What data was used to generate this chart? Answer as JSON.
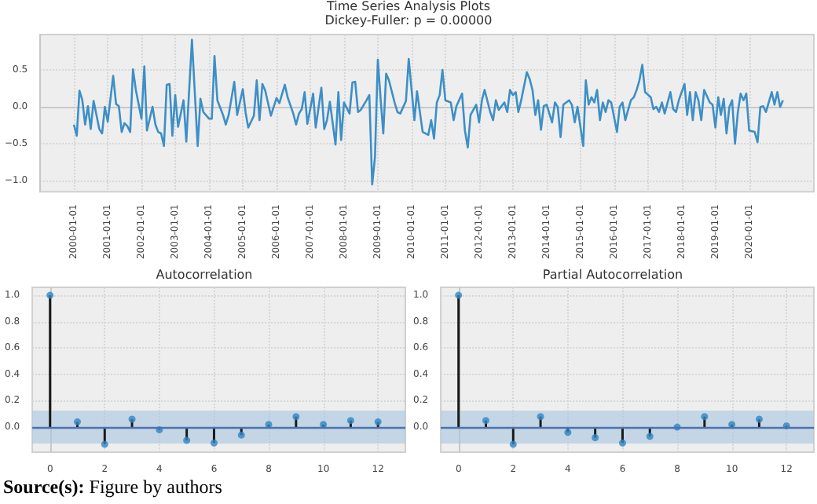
{
  "chart_data": [
    {
      "type": "line",
      "title": "Time Series Analysis Plots",
      "subtitle": "Dickey-Fuller: p = 0.00000",
      "annotations": [
        "Source(s): Figure by authors"
      ],
      "xlim": [
        "1999-01-01",
        "2021-12-01"
      ],
      "xticks": [
        "2000-01-01",
        "2001-01-01",
        "2002-01-01",
        "2003-01-01",
        "2004-01-01",
        "2005-01-01",
        "2006-01-01",
        "2007-01-01",
        "2008-01-01",
        "2009-01-01",
        "2010-01-01",
        "2011-01-01",
        "2012-01-01",
        "2013-01-01",
        "2014-01-01",
        "2015-01-01",
        "2016-01-01",
        "2017-01-01",
        "2018-01-01",
        "2019-01-01",
        "2020-01-01"
      ],
      "ylim": [
        -1.15,
        0.98
      ],
      "yticks": [
        {
          "value": -1,
          "label": "−1.0"
        },
        {
          "value": -0.5,
          "label": "−0.5"
        },
        {
          "value": 0,
          "label": "0.0"
        },
        0.5
      ],
      "grid": true,
      "marker": "none",
      "line_style": "solid",
      "series": [
        {
          "color": "#3d8fc6",
          "x": [
            "2000-01",
            "2000-02",
            "2000-03",
            "2000-04",
            "2000-05",
            "2000-06",
            "2000-07",
            "2000-08",
            "2000-09",
            "2000-10",
            "2000-11",
            "2000-12",
            "2001-01",
            "2001-03",
            "2001-04",
            "2001-05",
            "2001-06",
            "2001-07",
            "2001-08",
            "2001-09",
            "2001-10",
            "2001-11",
            "2002-01",
            "2002-02",
            "2002-03",
            "2002-05",
            "2002-06",
            "2002-07",
            "2002-08",
            "2002-09",
            "2002-10",
            "2002-11",
            "2002-12",
            "2003-01",
            "2003-02",
            "2003-04",
            "2003-05",
            "2003-07",
            "2003-09",
            "2003-10",
            "2003-11",
            "2004-01",
            "2004-02",
            "2004-03",
            "2004-04",
            "2004-06",
            "2004-07",
            "2004-08",
            "2004-10",
            "2004-11",
            "2005-01",
            "2005-02",
            "2005-03",
            "2005-05",
            "2005-06",
            "2005-07",
            "2005-08",
            "2005-09",
            "2005-11",
            "2006-01",
            "2006-02",
            "2006-04",
            "2006-05",
            "2006-07",
            "2006-08",
            "2006-09",
            "2006-10",
            "2006-11",
            "2006-12",
            "2007-02",
            "2007-03",
            "2007-05",
            "2007-06",
            "2007-07",
            "2007-08",
            "2007-10",
            "2007-11",
            "2007-12",
            "2008-01",
            "2008-03",
            "2008-04",
            "2008-05",
            "2008-06",
            "2008-07",
            "2008-09",
            "2008-10",
            "2008-11",
            "2008-12",
            "2009-01",
            "2009-02",
            "2009-03",
            "2009-04",
            "2009-05",
            "2009-07",
            "2009-08",
            "2009-09",
            "2009-11",
            "2009-12",
            "2010-02",
            "2010-03",
            "2010-05",
            "2010-07",
            "2010-08",
            "2010-09",
            "2010-10",
            "2010-11",
            "2010-12",
            "2011-01",
            "2011-03",
            "2011-04",
            "2011-05",
            "2011-07",
            "2011-08",
            "2011-09",
            "2011-10",
            "2011-12",
            "2012-01",
            "2012-02",
            "2012-03",
            "2012-05",
            "2012-06",
            "2012-07",
            "2012-08",
            "2012-10",
            "2012-11",
            "2012-12",
            "2013-01",
            "2013-02",
            "2013-03",
            "2013-04",
            "2013-06",
            "2013-07",
            "2013-08",
            "2013-09",
            "2013-10",
            "2013-11",
            "2013-12",
            "2014-01",
            "2014-03",
            "2014-04",
            "2014-05",
            "2014-06",
            "2014-07",
            "2014-09",
            "2014-10",
            "2014-11",
            "2014-12",
            "2015-02",
            "2015-03",
            "2015-04",
            "2015-05",
            "2015-06",
            "2015-07",
            "2015-08",
            "2015-09",
            "2015-10",
            "2015-11",
            "2015-12",
            "2016-02",
            "2016-03",
            "2016-04",
            "2016-05",
            "2016-06",
            "2016-07",
            "2016-08",
            "2016-09",
            "2016-10",
            "2016-11",
            "2016-12",
            "2017-02",
            "2017-03",
            "2017-04",
            "2017-05",
            "2017-06",
            "2017-07",
            "2017-09",
            "2017-10",
            "2017-11",
            "2017-12",
            "2018-02",
            "2018-03",
            "2018-04",
            "2018-05",
            "2018-06",
            "2018-07",
            "2018-08",
            "2018-09",
            "2018-11",
            "2018-12",
            "2019-01",
            "2019-02",
            "2019-03",
            "2019-04",
            "2019-05",
            "2019-06",
            "2019-07",
            "2019-08",
            "2019-09",
            "2019-10",
            "2019-11",
            "2019-12",
            "2020-01",
            "2020-03",
            "2020-04",
            "2020-05",
            "2020-06",
            "2020-07",
            "2020-09",
            "2020-10",
            "2020-11",
            "2020-12",
            "2021-01"
          ],
          "values": [
            -0.24,
            -0.39,
            0.22,
            0.09,
            -0.24,
            0.01,
            -0.3,
            0.08,
            -0.11,
            -0.3,
            -0.36,
            0,
            -0.2,
            0.42,
            0.04,
            0.01,
            -0.34,
            -0.22,
            -0.26,
            -0.34,
            0.51,
            0.23,
            -0.16,
            0.55,
            -0.32,
            0,
            -0.24,
            -0.34,
            -0.36,
            -0.53,
            0.3,
            0.31,
            -0.39,
            0.16,
            -0.27,
            0.09,
            -0.47,
            0.91,
            -0.53,
            0.11,
            -0.07,
            -0.16,
            -0.16,
            0.69,
            0.09,
            -0.11,
            -0.24,
            -0.11,
            0.34,
            -0.11,
            0.24,
            -0.08,
            -0.28,
            -0.12,
            0.36,
            -0.18,
            0.31,
            0.22,
            -0.12,
            0.12,
            0.05,
            0.3,
            0.13,
            -0.09,
            -0.24,
            -0.09,
            -0.03,
            0.2,
            -0.23,
            0.18,
            -0.28,
            0.26,
            -0.3,
            -0.18,
            0.07,
            -0.51,
            0.2,
            -0.45,
            0.06,
            -0.09,
            0.33,
            0.34,
            -0.07,
            -0.04,
            0.09,
            0.16,
            -1.05,
            -0.68,
            0.64,
            0.09,
            -0.36,
            0.45,
            0.36,
            0.06,
            -0.07,
            -0.09,
            0.08,
            0.65,
            -0.18,
            0.21,
            -0.34,
            -0.38,
            -0.18,
            -0.43,
            0.06,
            0.16,
            0.5,
            0.09,
            0.06,
            -0.18,
            0.01,
            0.18,
            -0.32,
            -0.55,
            -0.11,
            0.03,
            -0.21,
            0.09,
            0.23,
            -0.07,
            -0.18,
            0.09,
            -0.04,
            0.06,
            -0.07,
            0.23,
            0.16,
            0.2,
            -0.07,
            0.09,
            0.47,
            0.38,
            0.23,
            -0.11,
            0.09,
            -0.31,
            0.01,
            0.03,
            -0.21,
            0.06,
            0,
            -0.41,
            0.03,
            0.09,
            0.03,
            -0.21,
            0,
            -0.53,
            0.36,
            0.03,
            0.13,
            0.06,
            0.23,
            -0.18,
            0.06,
            -0.07,
            0.09,
            0.06,
            -0.34,
            0,
            0.06,
            -0.18,
            -0.04,
            0.09,
            0.13,
            0.23,
            0.36,
            0.57,
            0.2,
            0.13,
            -0.03,
            0,
            -0.07,
            0.06,
            -0.09,
            0.2,
            -0.03,
            -0.07,
            0.09,
            0.31,
            -0.11,
            0.2,
            -0.18,
            0.2,
            0.09,
            -0.18,
            0.23,
            0.06,
            0.03,
            -0.28,
            0.13,
            -0.11,
            0.11,
            -0.36,
            0,
            0.09,
            -0.5,
            -0.07,
            0.18,
            0.09,
            0.18,
            -0.32,
            -0.34,
            -0.48,
            0,
            0.01,
            -0.07,
            0.2,
            0.03,
            0.2,
            0,
            0.09
          ]
        }
      ]
    },
    {
      "type": "lollipop",
      "title": "Autocorrelation",
      "x": [
        0,
        1,
        2,
        3,
        4,
        5,
        6,
        7,
        8,
        9,
        10,
        11,
        12
      ],
      "xlim": [
        -0.65,
        13
      ],
      "xticks": [
        0,
        2,
        4,
        6,
        8,
        10,
        12
      ],
      "ylim": [
        -0.19,
        1.06
      ],
      "yticks": [
        {
          "value": 0,
          "label": "0.0"
        },
        0.2,
        0.4,
        0.6,
        0.8,
        {
          "value": 1,
          "label": "1.0"
        }
      ],
      "grid": true,
      "marker": "circle",
      "ref_lines": [
        {
          "axis": "y",
          "value": 0,
          "color": "#4c72b0"
        }
      ],
      "bands": [
        {
          "axis": "y",
          "from": -0.125,
          "to": 0.125,
          "color": "#a9c7df"
        }
      ],
      "series": [
        {
          "color": "#2f86c4",
          "values": [
            1,
            0.04,
            -0.13,
            0.06,
            -0.02,
            -0.1,
            -0.12,
            -0.06,
            0.02,
            0.08,
            0.02,
            0.05,
            0.04
          ]
        }
      ]
    },
    {
      "type": "lollipop",
      "title": "Partial Autocorrelation",
      "x": [
        0,
        1,
        2,
        3,
        4,
        5,
        6,
        7,
        8,
        9,
        10,
        11,
        12
      ],
      "xlim": [
        -0.65,
        13
      ],
      "xticks": [
        0,
        2,
        4,
        6,
        8,
        10,
        12
      ],
      "ylim": [
        -0.19,
        1.06
      ],
      "yticks": [
        {
          "value": 0,
          "label": "0.0"
        },
        0.2,
        0.4,
        0.6,
        0.8,
        {
          "value": 1,
          "label": "1.0"
        }
      ],
      "grid": true,
      "marker": "circle",
      "ref_lines": [
        {
          "axis": "y",
          "value": 0,
          "color": "#4c72b0"
        }
      ],
      "bands": [
        {
          "axis": "y",
          "from": -0.125,
          "to": 0.125,
          "color": "#a9c7df"
        }
      ],
      "series": [
        {
          "color": "#2f86c4",
          "values": [
            1,
            0.05,
            -0.13,
            0.08,
            -0.04,
            -0.08,
            -0.12,
            -0.07,
            0,
            0.08,
            0.02,
            0.06,
            0.01
          ]
        }
      ]
    }
  ]
}
